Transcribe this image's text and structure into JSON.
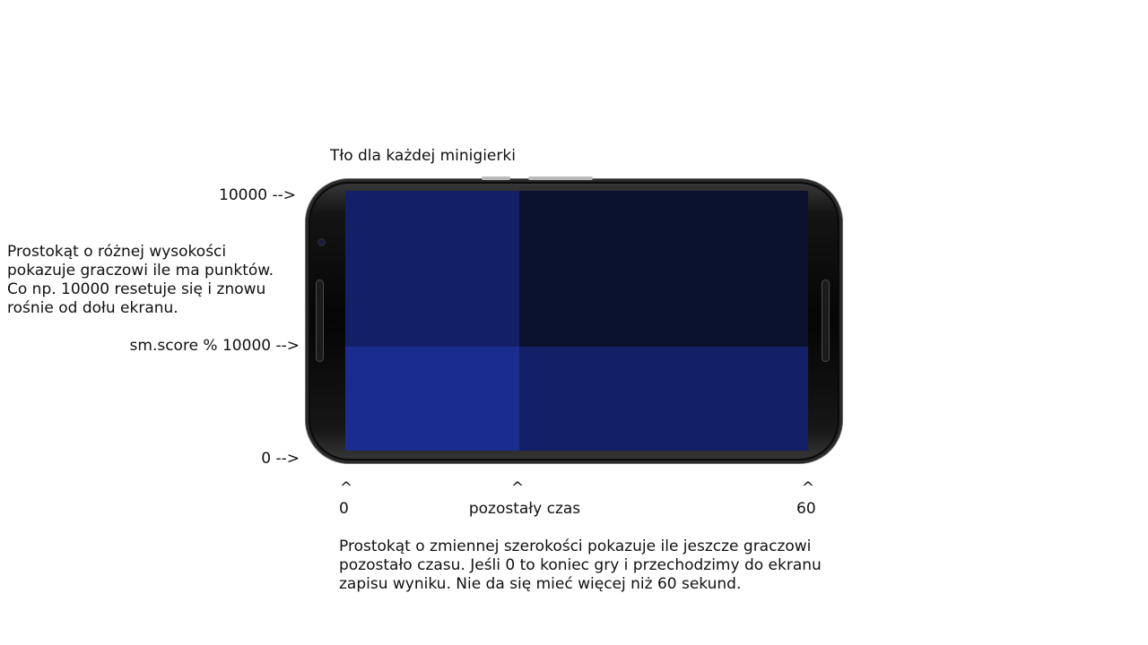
{
  "title": "Tło dla każdej minigierki",
  "y_axis": {
    "top_label": "10000 -->",
    "mid_label": "sm.score % 10000 -->",
    "bottom_label": "0 -->"
  },
  "score_description": [
    "Prostokąt o różnej wysokości",
    "pokazuje graczowi ile ma punktów.",
    "Co np. 10000 resetuje się i znowu",
    "rośnie od dołu ekranu."
  ],
  "x_axis": {
    "left_caret": "^",
    "mid_caret": "^",
    "right_caret": "^",
    "left_label": "0",
    "mid_label": "pozostały czas",
    "right_label": "60"
  },
  "time_description": [
    "Prostokąt o zmiennej szerokości pokazuje ile jeszcze graczowi",
    "pozostało czasu. Jeśli 0 to koniec gry i przechodzimy do ekranu",
    "zapisu wyniku. Nie da się mieć więcej niż 60 sekund."
  ],
  "screen": {
    "time_fraction": 0.375,
    "score_fraction": 0.4,
    "colors": {
      "background": "#0b1230",
      "score_band": "#131f66",
      "time_band": "#132066",
      "overlap": "#1a2d8f"
    }
  }
}
